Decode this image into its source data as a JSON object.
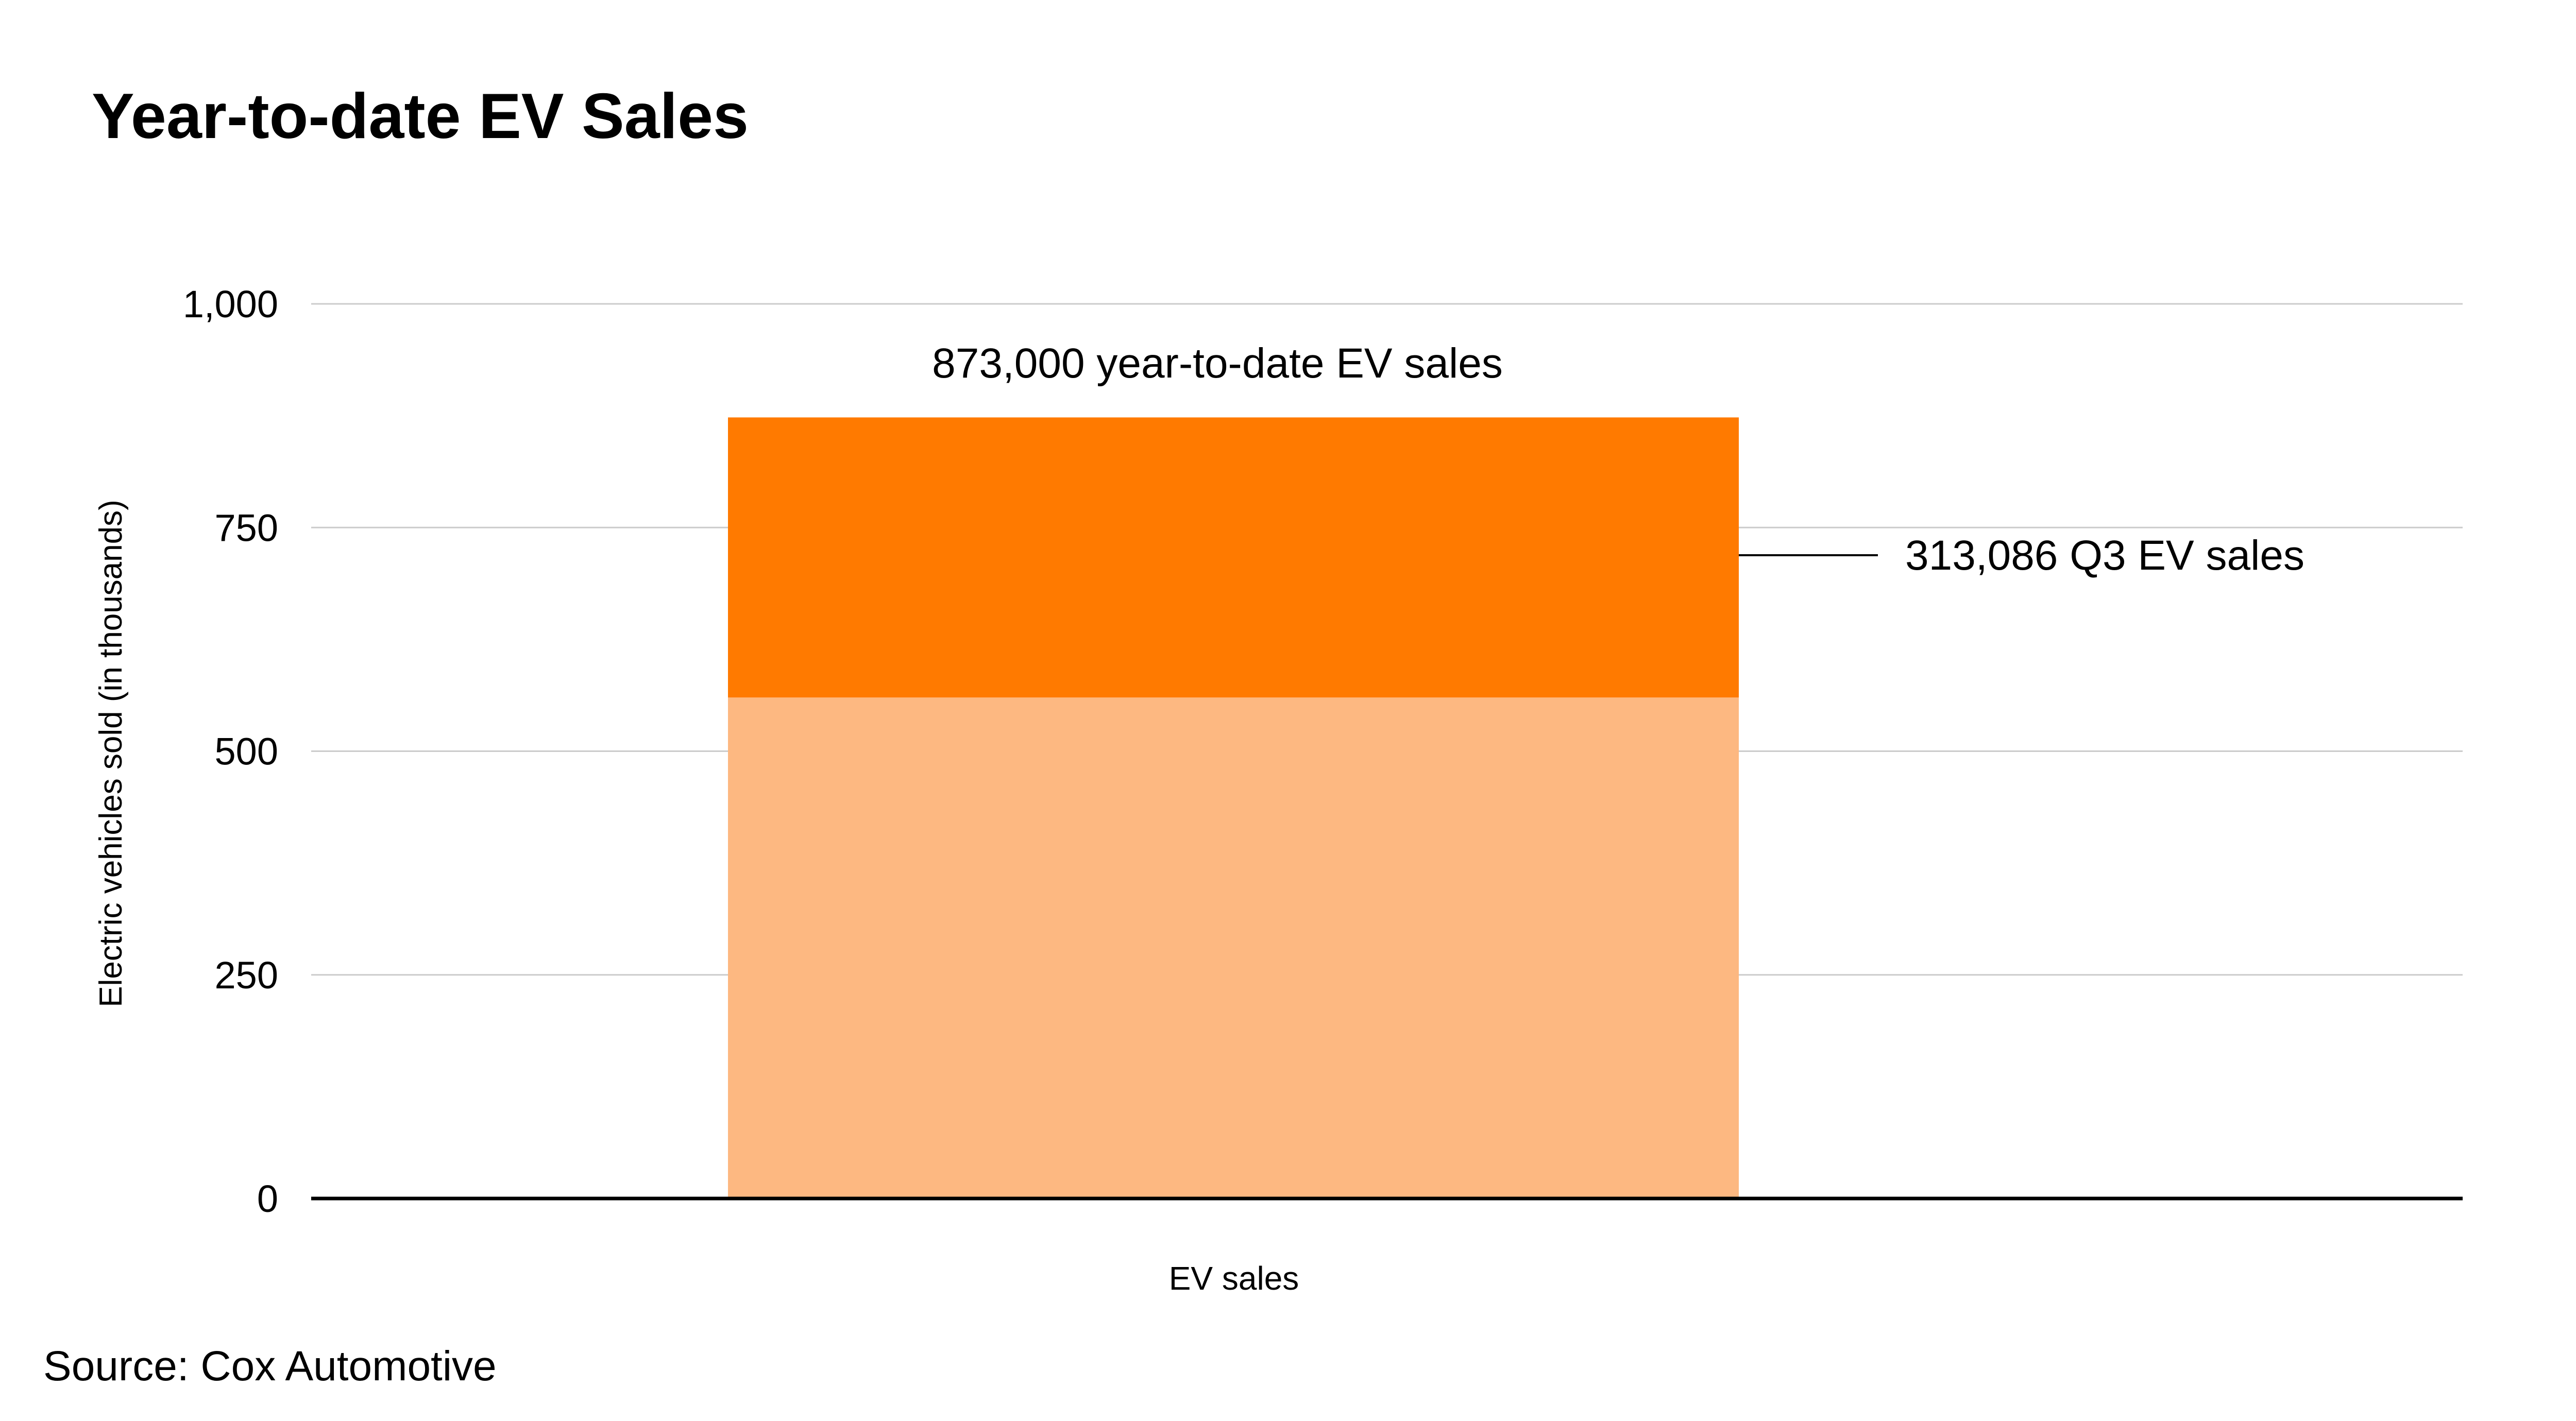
{
  "chart_data": {
    "type": "bar",
    "stacked": true,
    "title": "Year-to-date EV Sales",
    "ylabel": "Electric vehicles sold (in thousands)",
    "xlabel": "",
    "categories": [
      "EV sales"
    ],
    "series": [
      {
        "values": [
          560
        ],
        "color": "#FDB881"
      },
      {
        "values": [
          313.086
        ],
        "color": "#FF7A00"
      }
    ],
    "ylim": [
      0,
      1000
    ],
    "yticks": [
      0,
      250,
      500,
      750,
      1000
    ],
    "ytick_labels": [
      "0",
      "250",
      "500",
      "750",
      "1,000"
    ],
    "grid": true,
    "annotations": {
      "total_label": "873,000 year-to-date EV sales",
      "q3_label": "313,086 Q3 EV sales"
    },
    "source": "Source: Cox Automotive"
  },
  "colors": {
    "grid": "#CCCCCC",
    "axis": "#000000",
    "text": "#000000"
  }
}
